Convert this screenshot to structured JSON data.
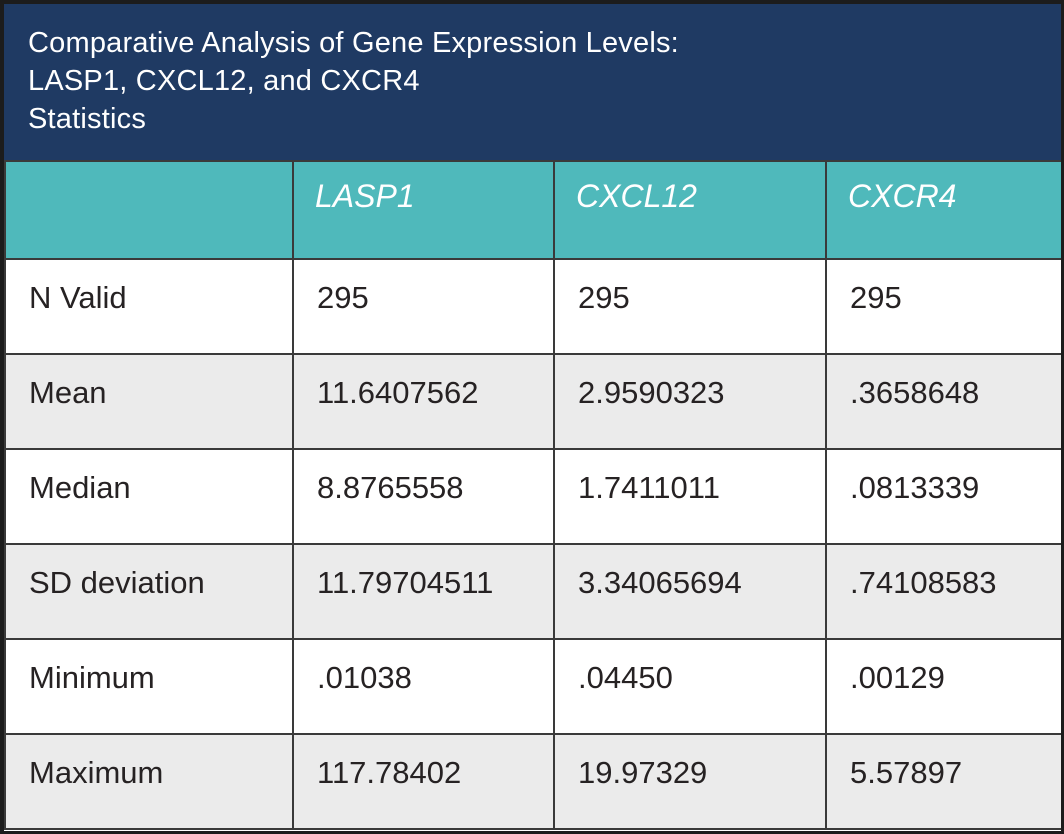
{
  "title": {
    "lines": [
      "Comparative Analysis of Gene Expression Levels:",
      "LASP1, CXCL12, and CXCR4",
      "Statistics"
    ]
  },
  "chart_data": {
    "type": "table",
    "title": "Comparative Analysis of Gene Expression Levels: LASP1, CXCL12, and CXCR4 — Statistics",
    "columns": [
      "",
      "LASP1",
      "CXCL12",
      "CXCR4"
    ],
    "rows": [
      {
        "label": "N Valid",
        "values": [
          "295",
          "295",
          "295"
        ]
      },
      {
        "label": "Mean",
        "values": [
          "11.6407562",
          "2.9590323",
          ".3658648"
        ]
      },
      {
        "label": "Median",
        "values": [
          "8.8765558",
          "1.7411011",
          ".0813339"
        ]
      },
      {
        "label": "SD deviation",
        "values": [
          "11.79704511",
          "3.34065694",
          ".74108583"
        ]
      },
      {
        "label": "Minimum",
        "values": [
          ".01038",
          ".04450",
          ".00129"
        ]
      },
      {
        "label": "Maximum",
        "values": [
          "117.78402",
          "19.97329",
          "5.57897"
        ]
      }
    ]
  },
  "colors": {
    "header_bg": "#1f3a63",
    "column_header_bg": "#4fb9bb",
    "row_bg": "#ffffff",
    "row_alt_bg": "#ebebeb",
    "grid_border": "#3a3a3a",
    "outer_border": "#1c1c1c",
    "text_dark": "#262223",
    "text_light": "#ffffff"
  }
}
